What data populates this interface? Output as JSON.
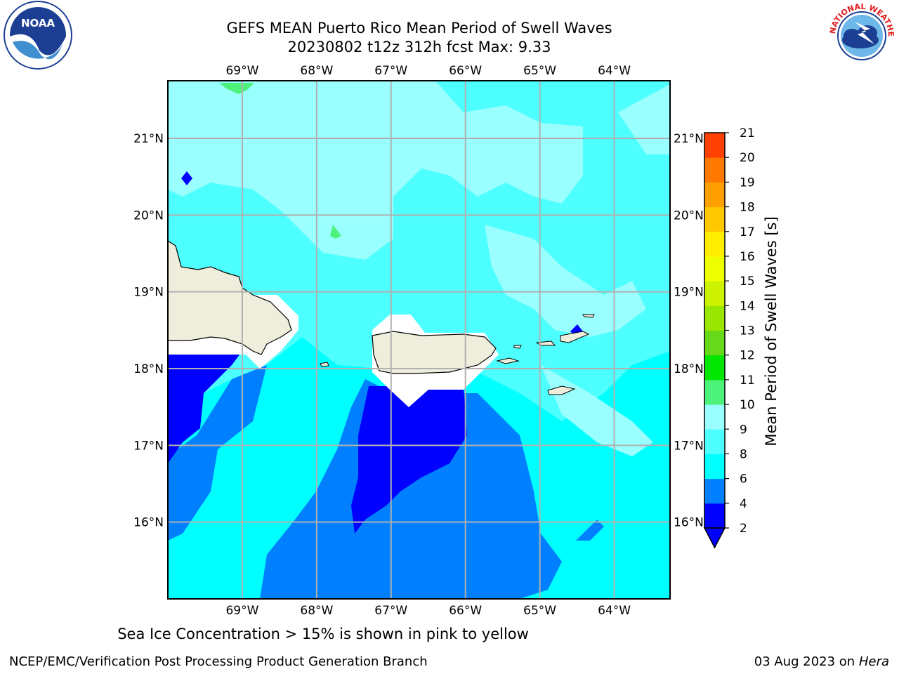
{
  "header": {
    "title_line1": "GEFS MEAN Puerto Rico Mean Period of Swell Waves",
    "title_line2": "20230802 t12z 312h fcst   Max: 9.33"
  },
  "logos": {
    "left": "noaa-logo",
    "left_text": "NOAA",
    "right": "nws-logo",
    "right_text": "NATIONAL WEATHER SERVICE"
  },
  "map": {
    "lon_labels": [
      "69°W",
      "68°W",
      "67°W",
      "66°W",
      "65°W",
      "64°W"
    ],
    "lat_labels": [
      "21°N",
      "20°N",
      "19°N",
      "18°N",
      "17°N",
      "16°N"
    ],
    "lon_values": [
      -69,
      -68,
      -67,
      -66,
      -65,
      -64
    ],
    "lat_values": [
      21,
      20,
      19,
      18,
      17,
      16
    ],
    "extent": {
      "lon_min": -70.0,
      "lon_max": -63.25,
      "lat_min": 15.0,
      "lat_max": 21.75
    },
    "grid": true,
    "land_color": "#efeedc",
    "colors": {
      "2-4": "#0000ff",
      "4-6": "#0080ff",
      "6-8": "#00ffff",
      "8-9": "#4dffff",
      "9-10": "#99ffff",
      "10-11": "#4df27a"
    }
  },
  "colorbar": {
    "label": "Mean Period of Swell Waves [s]",
    "ticks": [
      "2",
      "4",
      "6",
      "8",
      "9",
      "10",
      "11",
      "12",
      "13",
      "14",
      "15",
      "16",
      "17",
      "18",
      "19",
      "20",
      "21"
    ],
    "colors": [
      "#0000ff",
      "#0080ff",
      "#00ffff",
      "#4dffff",
      "#99ffff",
      "#4df27a",
      "#00e600",
      "#66d91a",
      "#99e600",
      "#ccf200",
      "#eeff00",
      "#ffee00",
      "#ffc800",
      "#ffa000",
      "#ff7800",
      "#ff4000",
      "#ff0000"
    ],
    "extend": "min"
  },
  "note": {
    "sea_ice": "Sea Ice Concentration > 15% is shown in pink to yellow"
  },
  "footer": {
    "left": "NCEP/EMC/Verification Post Processing Product Generation Branch",
    "right_date": "03 Aug 2023 on",
    "right_machine": "Hera"
  }
}
